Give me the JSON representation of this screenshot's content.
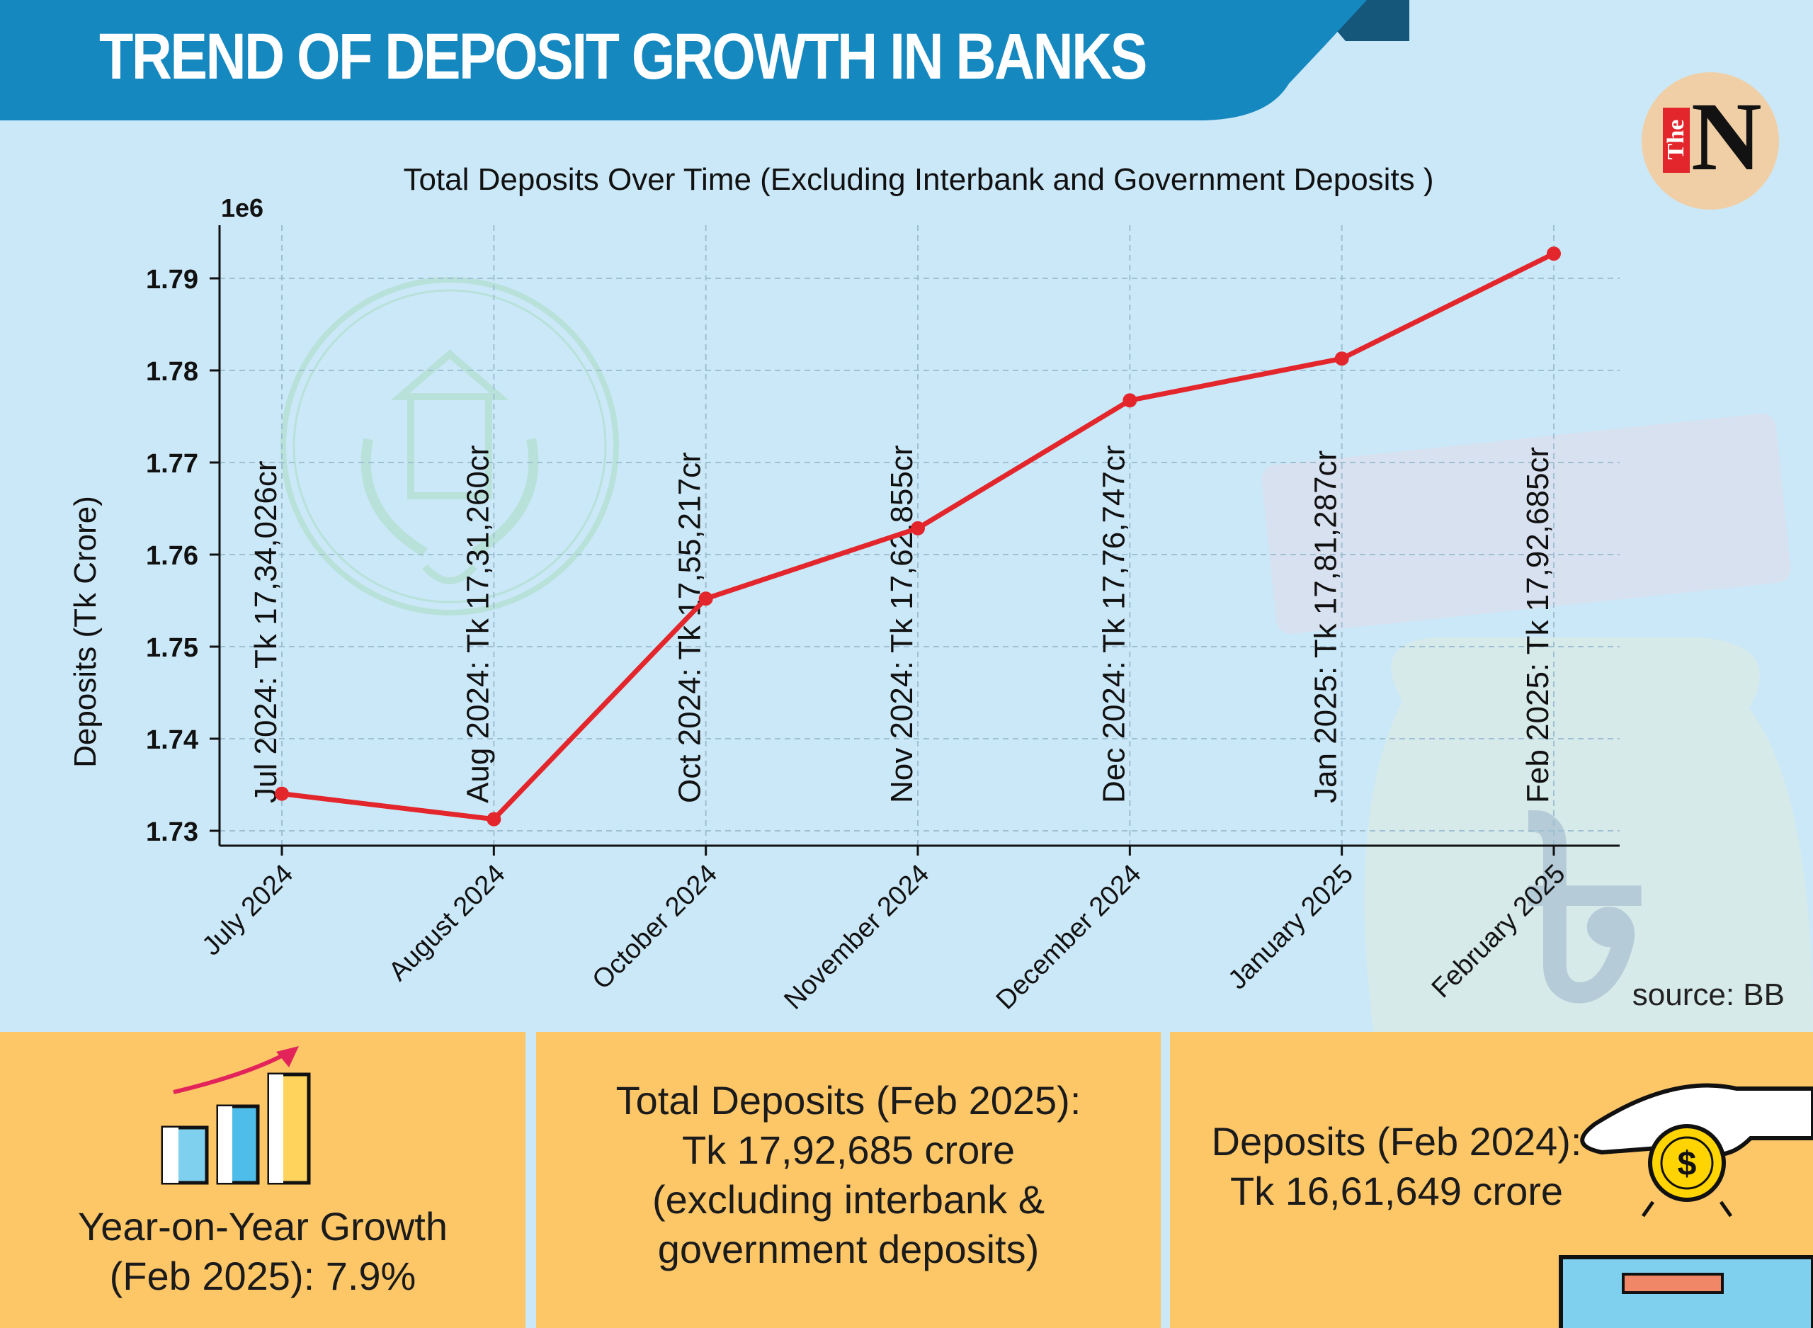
{
  "banner": {
    "title": "TREND OF DEPOSIT GROWTH IN BANKS"
  },
  "logo": {
    "the": "The",
    "n": "N"
  },
  "colors": {
    "banner": "#1588c0",
    "background": "#cbe8f8",
    "line": "#e3262c",
    "panel": "#fdc768"
  },
  "icons": [
    "growth-bars-icon",
    "coin-drop-icon",
    "bangladesh-bank-seal-watermark",
    "money-bag-watermark"
  ],
  "source": "source: BB",
  "chart_data": {
    "type": "line",
    "title": "Total Deposits Over Time (Excluding Interbank and Government Deposits )",
    "ylabel": "Deposits (Tk Crore)",
    "xlabel": "",
    "scale_label": "1e6",
    "categories": [
      "July 2024",
      "August 2024",
      "October 2024",
      "November 2024",
      "December 2024",
      "January 2025",
      "February 2025"
    ],
    "values": [
      1734026,
      1731260,
      1755217,
      1762855,
      1776747,
      1781287,
      1792685
    ],
    "annotations": [
      "Jul 2024: Tk 17,34,026cr",
      "Aug 2024: Tk 17,31,260cr",
      "Oct 2024: Tk 17,55,217cr",
      "Nov 2024: Tk 17,62,855cr",
      "Dec 2024: Tk 17,76,747cr",
      "Jan 2025: Tk 17,81,287cr",
      "Feb 2025: Tk 17,92,685cr"
    ],
    "yticks": [
      1.73,
      1.74,
      1.75,
      1.76,
      1.77,
      1.78,
      1.79
    ],
    "ylim": [
      1728500,
      1796000
    ],
    "grid": true,
    "grid_style": "dashed"
  },
  "panels": {
    "growth": {
      "line1": "Year-on-Year Growth",
      "line2": "(Feb 2025): 7.9%"
    },
    "total": {
      "line1": "Total Deposits (Feb 2025):",
      "line2": "Tk 17,92,685 crore",
      "line3": "(excluding interbank &",
      "line4": "government deposits)"
    },
    "previous": {
      "line1": "Deposits (Feb 2024):",
      "line2": "Tk 16,61,649 crore"
    }
  }
}
